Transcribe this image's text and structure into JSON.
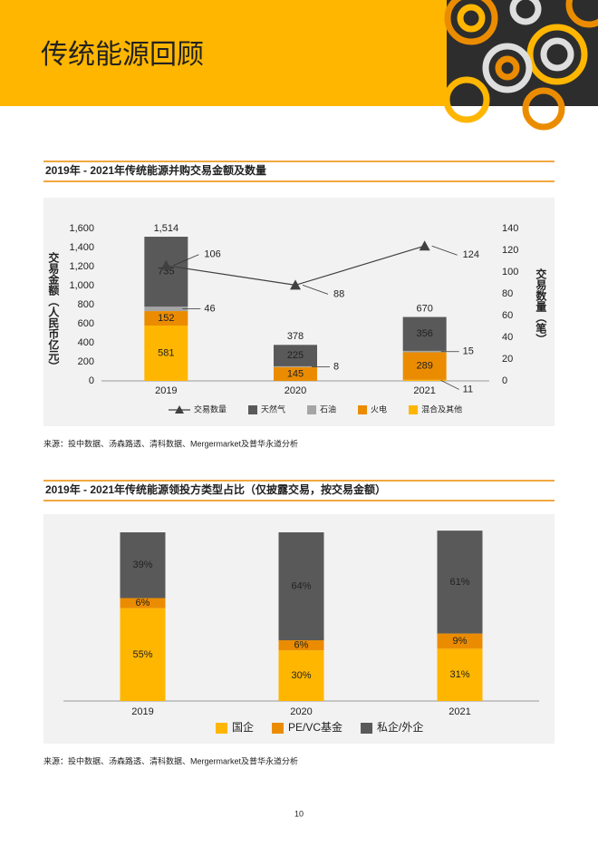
{
  "header": {
    "title": "传统能源回顾"
  },
  "chart_data": [
    {
      "type": "bar",
      "title": "2019年 - 2021年传统能源并购交易金额及数量",
      "y_label": "交易金额（人民币亿元）",
      "y2_label": "交易数量（笔）",
      "categories": [
        "2019",
        "2020",
        "2021"
      ],
      "series": [
        {
          "name": "交易数量",
          "type": "line",
          "axis": "y2",
          "color": "#404040",
          "values": [
            106,
            88,
            124
          ]
        },
        {
          "name": "天然气",
          "type": "bar",
          "color": "#595959",
          "values": [
            735,
            225,
            356
          ]
        },
        {
          "name": "石油",
          "type": "bar",
          "color": "#a5a5a5",
          "values": [
            46,
            8,
            15
          ]
        },
        {
          "name": "火电",
          "type": "bar",
          "color": "#eb8c00",
          "values": [
            152,
            145,
            289
          ]
        },
        {
          "name": "混合及其他",
          "type": "bar",
          "color": "#ffb600",
          "values": [
            581,
            null,
            11
          ]
        }
      ],
      "totals": {
        "values": [
          1514,
          378,
          670
        ],
        "value_labels": [
          "1,514",
          "378",
          "670"
        ]
      },
      "ylim": [
        0,
        1600
      ],
      "yticks": [
        0,
        200,
        400,
        600,
        800,
        {
          "value": 1000,
          "label": "1,000"
        },
        {
          "value": 1200,
          "label": "1,200"
        },
        {
          "value": 1400,
          "label": "1,400"
        },
        {
          "value": 1600,
          "label": "1,600"
        }
      ],
      "y2lim": [
        0,
        140
      ],
      "y2ticks": [
        0,
        20,
        40,
        60,
        80,
        100,
        120,
        140
      ],
      "grid": false,
      "source": "来源：投中数据、汤森路透、清科数据、Mergermarket及普华永道分析"
    },
    {
      "type": "bar",
      "title": "2019年 - 2021年传统能源领投方类型占比（仅披露交易，按交易金额）",
      "categories": [
        "2019",
        "2020",
        "2021"
      ],
      "series": [
        {
          "name": "国企",
          "color": "#ffb600",
          "values": [
            55,
            30,
            31
          ],
          "value_labels": [
            "55%",
            "30%",
            "31%"
          ]
        },
        {
          "name": "PE/VC基金",
          "color": "#eb8c00",
          "values": [
            6,
            6,
            9
          ],
          "value_labels": [
            "6%",
            "6%",
            "9%"
          ]
        },
        {
          "name": "私企/外企",
          "color": "#595959",
          "values": [
            39,
            64,
            61
          ],
          "value_labels": [
            "39%",
            "64%",
            "61%"
          ]
        }
      ],
      "ylim": [
        0,
        100
      ],
      "source": "来源：投中数据、汤森路透、清科数据、Mergermarket及普华永道分析"
    }
  ],
  "page_number": 10
}
